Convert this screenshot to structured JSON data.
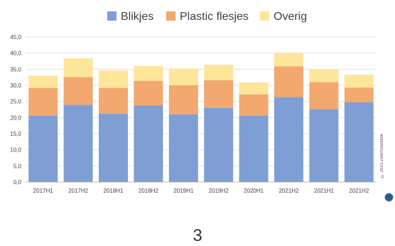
{
  "chart_data": {
    "type": "bar",
    "stacked": true,
    "categories": [
      "2017H1",
      "2017H2",
      "2018H1",
      "2018H2",
      "2019H1",
      "2019H2",
      "2020H1",
      "2021H2",
      "2021H1",
      "2021H2"
    ],
    "series": [
      {
        "name": "Blikjes",
        "color": "#7f9fd4",
        "values": [
          20.6,
          24.0,
          21.2,
          23.8,
          21.0,
          23.0,
          20.6,
          26.4,
          22.6,
          24.7
        ]
      },
      {
        "name": "Plastic flesjes",
        "color": "#f2a86f",
        "values": [
          8.6,
          8.6,
          8.0,
          7.6,
          9.0,
          8.6,
          6.6,
          9.5,
          8.4,
          4.6
        ]
      },
      {
        "name": "Overig",
        "color": "#fde59a",
        "values": [
          3.8,
          5.8,
          5.4,
          4.6,
          5.2,
          4.8,
          3.7,
          4.1,
          4.0,
          4.0
        ]
      }
    ],
    "ylim": [
      0,
      45
    ],
    "yticks": [
      "0,0",
      "5,0",
      "10,0",
      "15,0",
      "20,0",
      "25,0",
      "30,0",
      "35,0",
      "40,0",
      "45,0"
    ],
    "ytick_values": [
      0,
      5,
      10,
      15,
      20,
      25,
      30,
      35,
      40,
      45
    ],
    "legend_position": "top-center",
    "grid": true
  },
  "page_number": "3",
  "watermark_text": "© 2023 ZwerfStatistiek"
}
